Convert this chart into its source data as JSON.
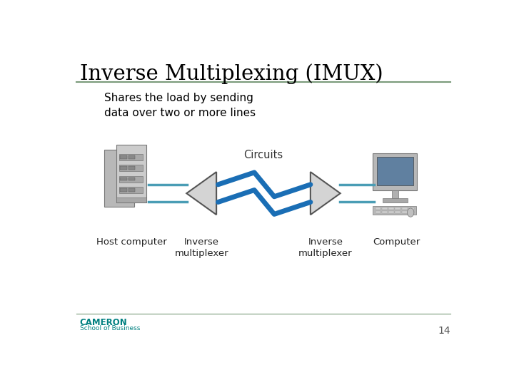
{
  "title": "Inverse Multiplexing (IMUX)",
  "subtitle": "Shares the load by sending\ndata over two or more lines",
  "circuits_label": "Circuits",
  "host_label": "Host computer",
  "imux1_label": "Inverse\nmultiplexer",
  "imux2_label": "Inverse\nmultiplexer",
  "computer_label": "Computer",
  "page_number": "14",
  "cameron_text": "CAMERON",
  "school_text": "School of Business",
  "bg_color": "#ffffff",
  "title_color": "#000000",
  "rule_color": "#7a9a7a",
  "teal_color": "#008080",
  "line_conn_color": "#4a9db5",
  "lightning_color": "#1a6eb5",
  "imux_face": "#d4d4d4",
  "imux_edge": "#555555",
  "server_dark": "#a8a8a8",
  "server_mid": "#b8b8b8",
  "server_light": "#cccccc",
  "monitor_face": "#b8b8b8",
  "screen_color": "#6080a0",
  "label_color": "#222222",
  "page_color": "#555555"
}
